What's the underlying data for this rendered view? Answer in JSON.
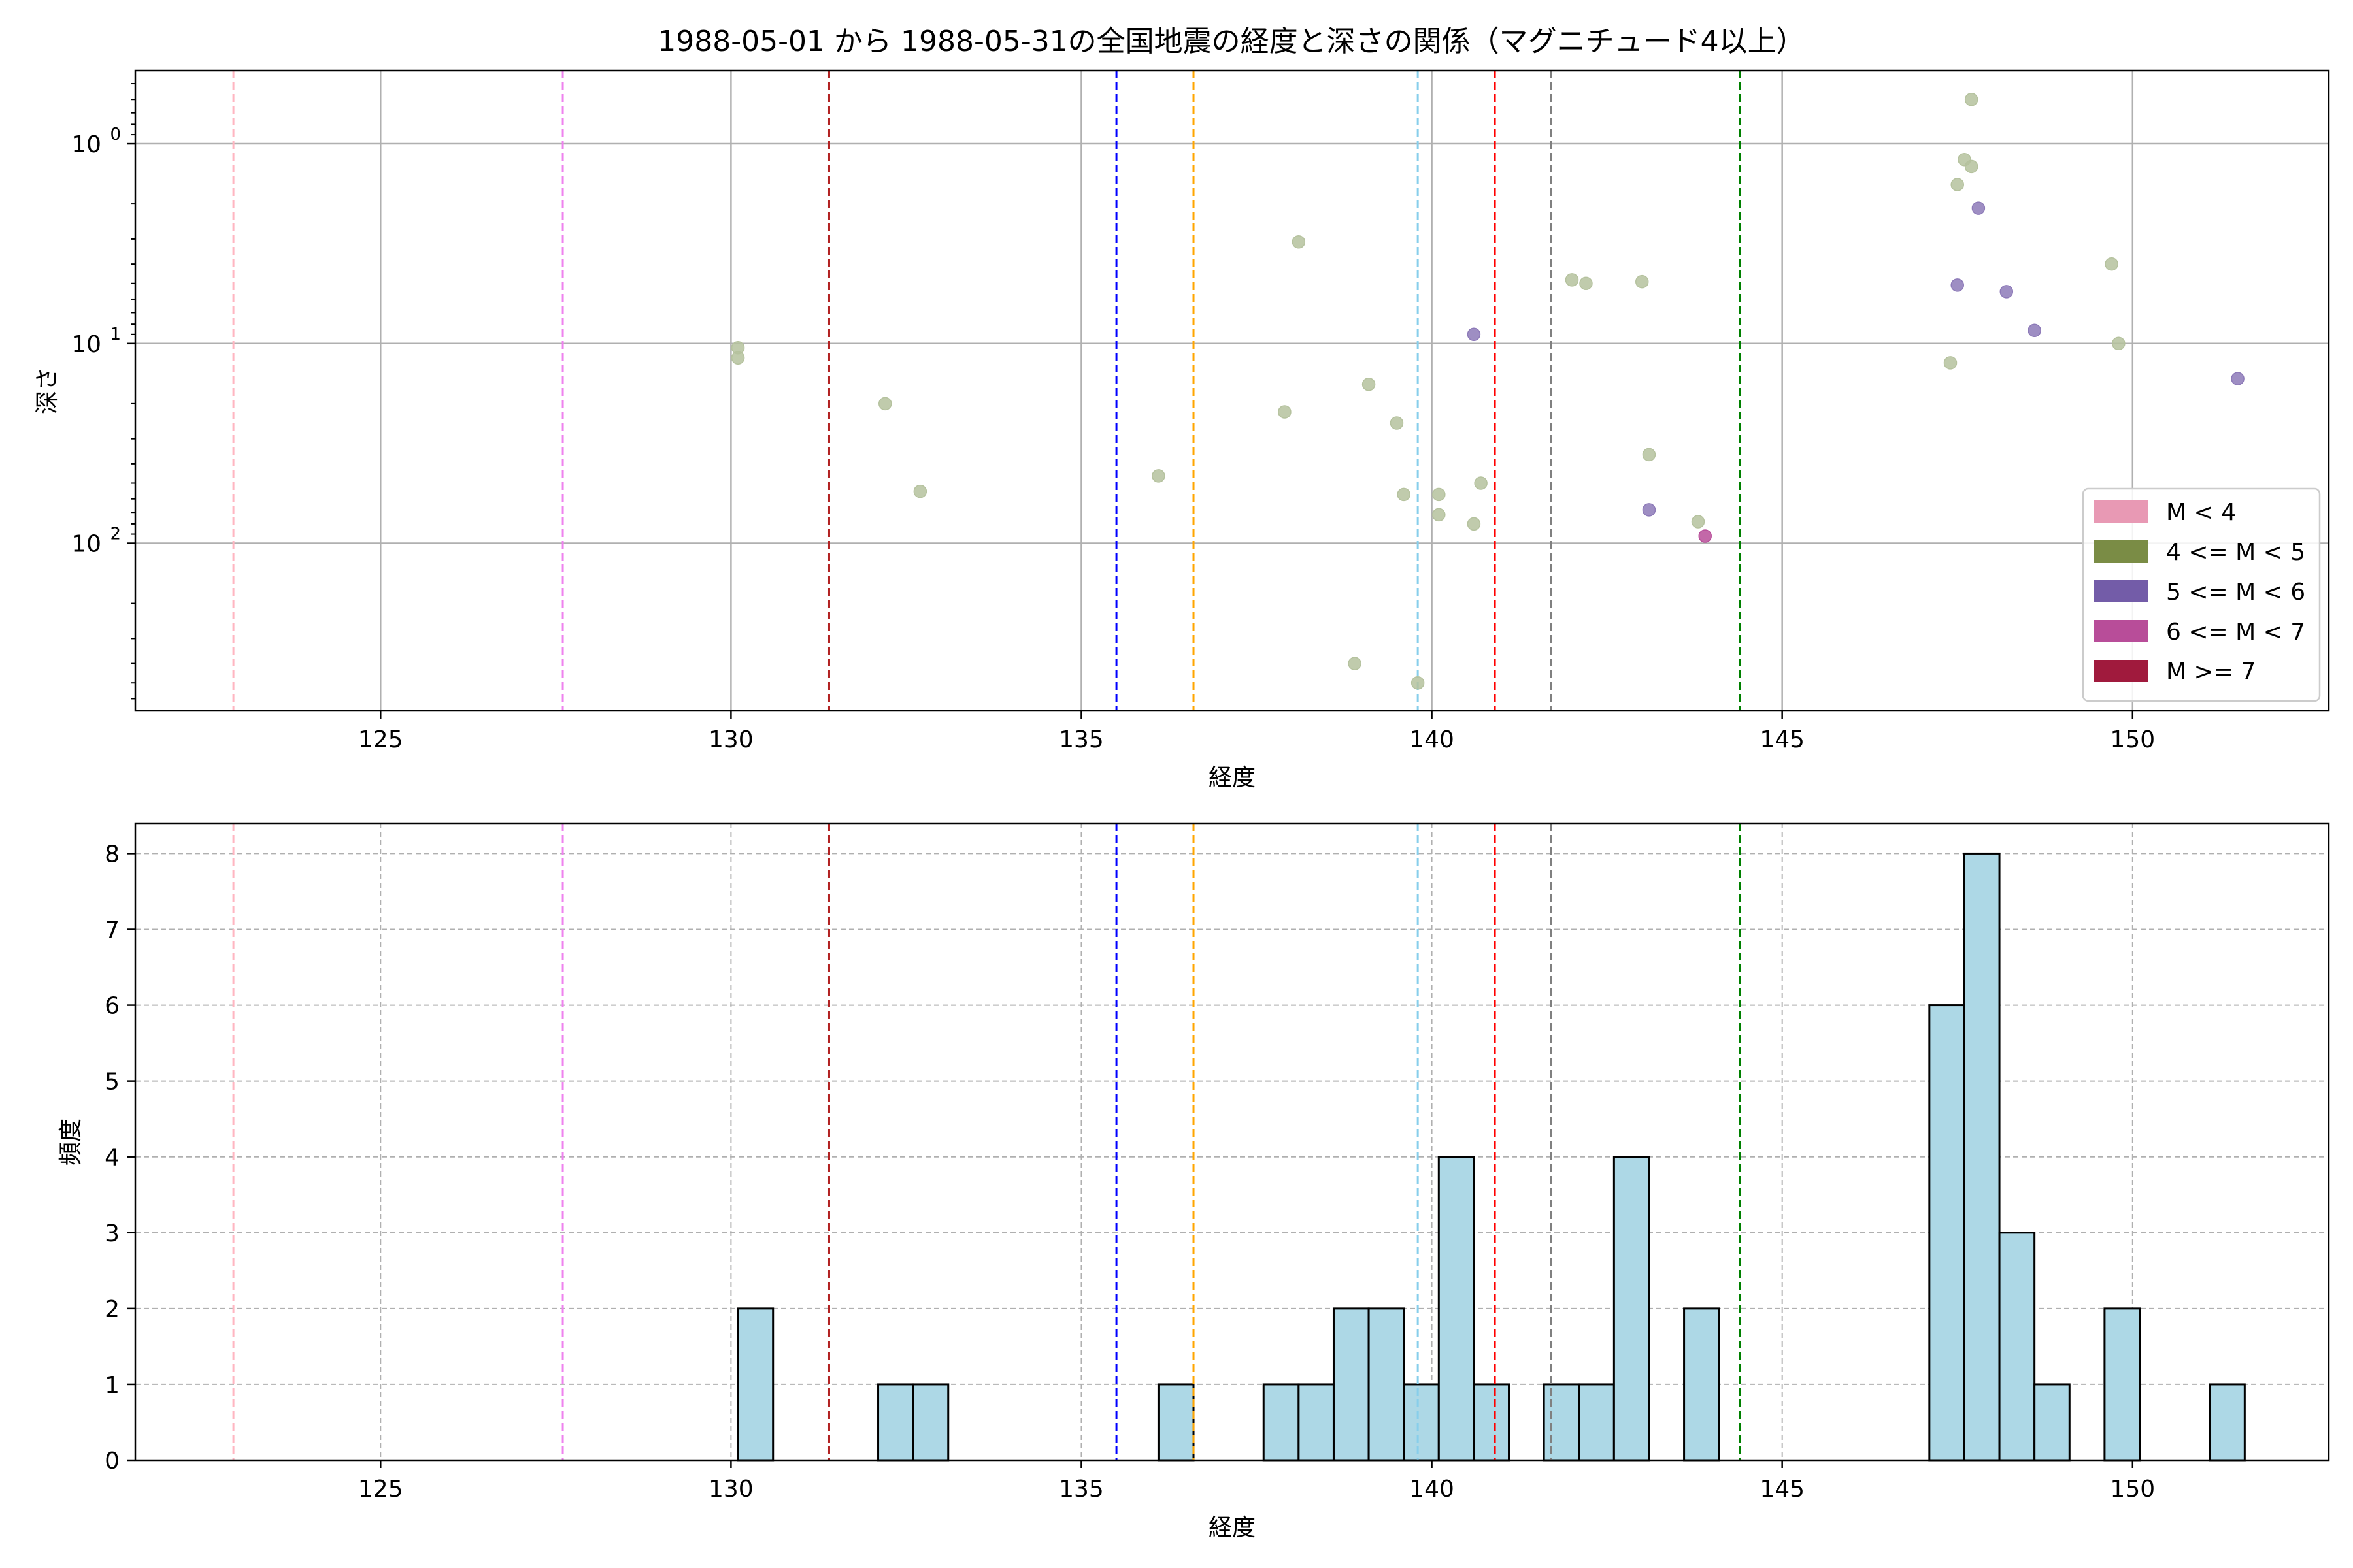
{
  "chart_data": [
    {
      "type": "scatter",
      "title": "1988-05-01 から 1988-05-31の全国地震の経度と深さの関係（マグニチュード4以上）",
      "xlabel": "経度",
      "ylabel": "深さ",
      "xlim": [
        121.5,
        152.8
      ],
      "ylim": [
        690,
        0.43
      ],
      "yscale": "log",
      "y_inverted": true,
      "xticks": [
        125,
        130,
        135,
        140,
        145,
        150
      ],
      "xtick_labels": [
        "125",
        "130",
        "135",
        "140",
        "145",
        "150"
      ],
      "yticks": [
        1,
        10,
        100
      ],
      "ytick_labels": [
        "10^0",
        "10^1",
        "10^2"
      ],
      "grid": true,
      "legend_position": "lower-right",
      "legend": [
        {
          "label": "M < 4",
          "color": "#e899b4"
        },
        {
          "label": "4 <= M < 5",
          "color": "#7a8c45"
        },
        {
          "label": "5 <= M < 6",
          "color": "#735ca8"
        },
        {
          "label": "6 <= M < 7",
          "color": "#b84d99"
        },
        {
          "label": "M >= 7",
          "color": "#a01a3d"
        }
      ],
      "vlines": [
        {
          "x": 122.9,
          "color": "#ffb6c1"
        },
        {
          "x": 127.6,
          "color": "#ee82ee"
        },
        {
          "x": 131.4,
          "color": "#b22222"
        },
        {
          "x": 135.5,
          "color": "#0000ff"
        },
        {
          "x": 136.6,
          "color": "#ffa500"
        },
        {
          "x": 139.8,
          "color": "#87ceeb"
        },
        {
          "x": 140.9,
          "color": "#ff0000"
        },
        {
          "x": 141.7,
          "color": "#808080"
        },
        {
          "x": 144.4,
          "color": "#008000"
        }
      ],
      "series": [
        {
          "name": "4 <= M < 5",
          "color": "#b5c29e",
          "points": [
            {
              "x": 130.1,
              "y": 10.5
            },
            {
              "x": 130.1,
              "y": 11.8
            },
            {
              "x": 132.2,
              "y": 20
            },
            {
              "x": 132.7,
              "y": 55
            },
            {
              "x": 136.1,
              "y": 46
            },
            {
              "x": 137.9,
              "y": 22
            },
            {
              "x": 138.1,
              "y": 3.1
            },
            {
              "x": 138.9,
              "y": 400
            },
            {
              "x": 139.1,
              "y": 16
            },
            {
              "x": 139.5,
              "y": 25
            },
            {
              "x": 139.6,
              "y": 57
            },
            {
              "x": 139.8,
              "y": 500
            },
            {
              "x": 140.1,
              "y": 57
            },
            {
              "x": 140.1,
              "y": 72
            },
            {
              "x": 140.6,
              "y": 80
            },
            {
              "x": 140.7,
              "y": 50
            },
            {
              "x": 142.0,
              "y": 4.8
            },
            {
              "x": 142.2,
              "y": 5.0
            },
            {
              "x": 143.0,
              "y": 4.9
            },
            {
              "x": 143.1,
              "y": 36
            },
            {
              "x": 143.8,
              "y": 78
            },
            {
              "x": 147.4,
              "y": 12.5
            },
            {
              "x": 147.5,
              "y": 1.6
            },
            {
              "x": 147.6,
              "y": 1.2
            },
            {
              "x": 147.7,
              "y": 1.3
            },
            {
              "x": 147.7,
              "y": 0.6
            },
            {
              "x": 149.7,
              "y": 4.0
            },
            {
              "x": 149.8,
              "y": 10
            }
          ]
        },
        {
          "name": "5 <= M < 6",
          "color": "#8d7ab8",
          "points": [
            {
              "x": 140.6,
              "y": 9
            },
            {
              "x": 143.1,
              "y": 68
            },
            {
              "x": 147.5,
              "y": 5.1
            },
            {
              "x": 147.8,
              "y": 2.1
            },
            {
              "x": 148.2,
              "y": 5.5
            },
            {
              "x": 148.6,
              "y": 8.6
            },
            {
              "x": 151.5,
              "y": 15
            }
          ]
        },
        {
          "name": "6 <= M < 7",
          "color": "#b84d99",
          "points": [
            {
              "x": 143.9,
              "y": 92
            }
          ]
        }
      ]
    },
    {
      "type": "bar",
      "title": "",
      "xlabel": "経度",
      "ylabel": "頻度",
      "xlim": [
        121.5,
        152.8
      ],
      "ylim": [
        0,
        8.4
      ],
      "xticks": [
        125,
        130,
        135,
        140,
        145,
        150
      ],
      "xtick_labels": [
        "125",
        "130",
        "135",
        "140",
        "145",
        "150"
      ],
      "yticks": [
        0,
        1,
        2,
        3,
        4,
        5,
        6,
        7,
        8
      ],
      "ytick_labels": [
        "0",
        "1",
        "2",
        "3",
        "4",
        "5",
        "6",
        "7",
        "8"
      ],
      "grid": true,
      "bar_color": "#add8e6",
      "bin_width": 0.5,
      "bins": [
        {
          "x0": 130.1,
          "count": 2
        },
        {
          "x0": 132.1,
          "count": 1
        },
        {
          "x0": 132.6,
          "count": 1
        },
        {
          "x0": 136.1,
          "count": 1
        },
        {
          "x0": 137.6,
          "count": 1
        },
        {
          "x0": 138.1,
          "count": 1
        },
        {
          "x0": 138.6,
          "count": 2
        },
        {
          "x0": 139.1,
          "count": 2
        },
        {
          "x0": 139.6,
          "count": 1
        },
        {
          "x0": 140.1,
          "count": 4
        },
        {
          "x0": 140.6,
          "count": 1
        },
        {
          "x0": 141.6,
          "count": 1
        },
        {
          "x0": 142.1,
          "count": 1
        },
        {
          "x0": 142.6,
          "count": 4
        },
        {
          "x0": 143.6,
          "count": 2
        },
        {
          "x0": 147.1,
          "count": 6
        },
        {
          "x0": 147.6,
          "count": 8
        },
        {
          "x0": 148.1,
          "count": 3
        },
        {
          "x0": 148.6,
          "count": 1
        },
        {
          "x0": 149.6,
          "count": 2
        },
        {
          "x0": 151.1,
          "count": 1
        }
      ],
      "vlines": [
        {
          "x": 122.9,
          "color": "#ffb6c1"
        },
        {
          "x": 127.6,
          "color": "#ee82ee"
        },
        {
          "x": 131.4,
          "color": "#b22222"
        },
        {
          "x": 135.5,
          "color": "#0000ff"
        },
        {
          "x": 136.6,
          "color": "#ffa500"
        },
        {
          "x": 139.8,
          "color": "#87ceeb"
        },
        {
          "x": 140.9,
          "color": "#ff0000"
        },
        {
          "x": 141.7,
          "color": "#808080"
        },
        {
          "x": 144.4,
          "color": "#008000"
        }
      ]
    }
  ]
}
